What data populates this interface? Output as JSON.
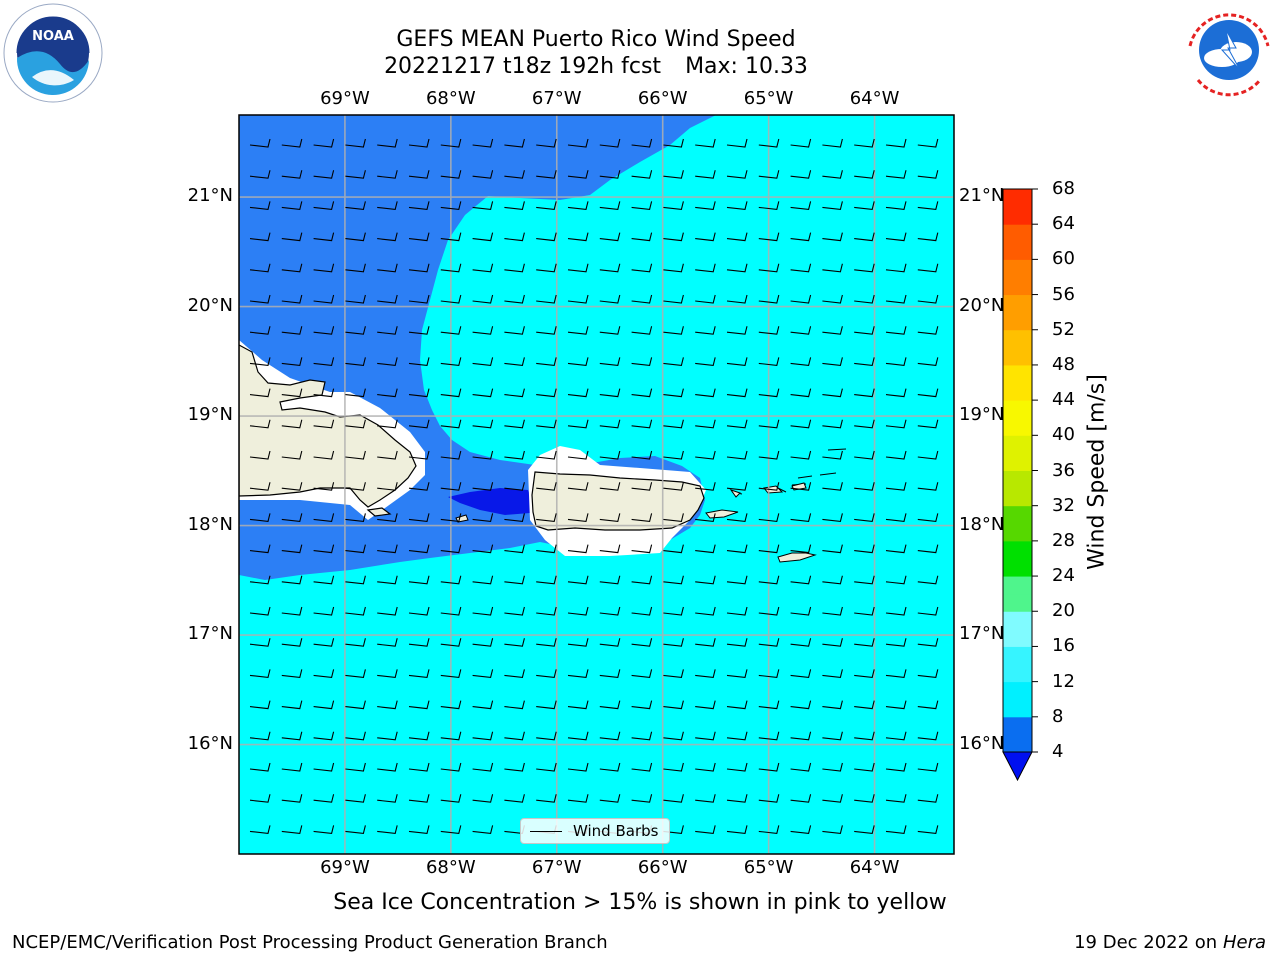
{
  "title": {
    "line1": "GEFS MEAN Puerto Rico Wind Speed",
    "line2": "20221217 t18z 192h fcst",
    "max_label": "Max: 10.33"
  },
  "axes": {
    "lon_ticks": [
      "69°W",
      "68°W",
      "67°W",
      "66°W",
      "65°W",
      "64°W"
    ],
    "lon_values": [
      -69,
      -68,
      -67,
      -66,
      -65,
      -64
    ],
    "lat_ticks": [
      "21°N",
      "20°N",
      "19°N",
      "18°N",
      "17°N",
      "16°N"
    ],
    "lat_values": [
      21,
      20,
      19,
      18,
      17,
      16
    ],
    "extent": {
      "lon_min": -70.0,
      "lon_max": -63.25,
      "lat_min": 15.0,
      "lat_max": 21.75
    },
    "grid": true
  },
  "colorbar": {
    "label": "Wind Speed [m/s]",
    "ticks": [
      "68",
      "64",
      "60",
      "56",
      "52",
      "48",
      "44",
      "40",
      "36",
      "32",
      "28",
      "24",
      "20",
      "16",
      "12",
      "8",
      "4"
    ],
    "levels": [
      4,
      6,
      8,
      10,
      12,
      14,
      16,
      18,
      20,
      22,
      24,
      26,
      28,
      30,
      32,
      34,
      36,
      38,
      40,
      42,
      44,
      46,
      48,
      50,
      52,
      54,
      56,
      58,
      60,
      62,
      64,
      66,
      68
    ],
    "colors": [
      "#0a6ef0",
      "#0a6ef0",
      "#00f0ff",
      "#00f0ff",
      "#36f4ff",
      "#36f4ff",
      "#80fbff",
      "#80fbff",
      "#4ff58c",
      "#4ff58c",
      "#00e000",
      "#00e000",
      "#56d800",
      "#56d800",
      "#b8e800",
      "#b8e800",
      "#dff200",
      "#dff200",
      "#f8f800",
      "#f8f800",
      "#ffe400",
      "#ffe400",
      "#ffc000",
      "#ffc000",
      "#ff9e00",
      "#ff9e00",
      "#ff7e00",
      "#ff7e00",
      "#ff5c00",
      "#ff5c00",
      "#ff2c00",
      "#ff2c00"
    ],
    "under_color": "#0010f0"
  },
  "field_colors": {
    "ocean_high": "#00ffff",
    "ocean_mid": "#2c7ff5",
    "ocean_low": "#0818e8",
    "land": "#efefdc"
  },
  "legend": {
    "label": "Wind Barbs"
  },
  "notes": {
    "sea_ice": "Sea Ice Concentration > 15% is shown in pink to yellow",
    "producer": "NCEP/EMC/Verification Post Processing Product Generation Branch",
    "date": "19 Dec 2022 on",
    "host": "Hera"
  },
  "logos": {
    "noaa": "NOAA",
    "nws": "NATIONAL WEATHER SERVICE"
  }
}
